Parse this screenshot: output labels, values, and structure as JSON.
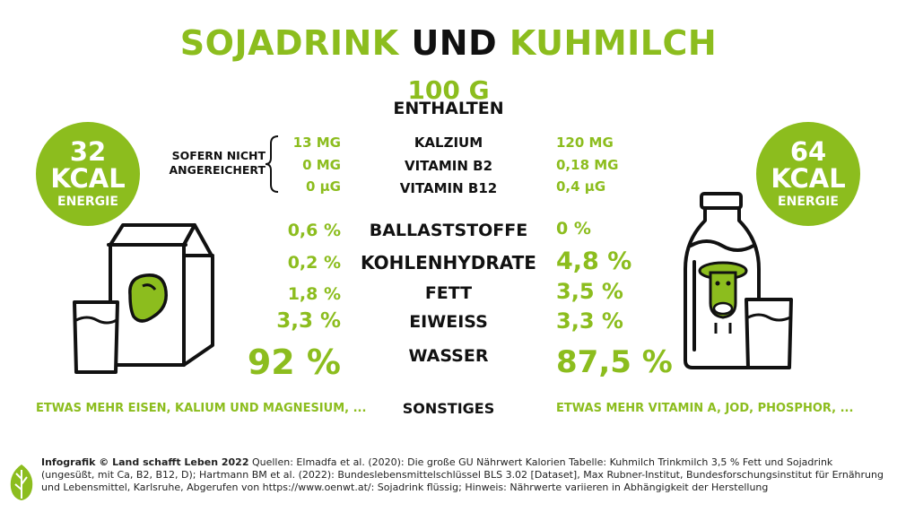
{
  "title": {
    "part1": "SOJADRINK",
    "part2": "UND",
    "part3": "KUHMILCH"
  },
  "header": {
    "line1": "100 G",
    "line2": "ENTHALTEN"
  },
  "soy_energy": {
    "value": "32",
    "unit": "KCAL",
    "label": "ENERGIE"
  },
  "milk_energy": {
    "value": "64",
    "unit": "KCAL",
    "label": "ENERGIE"
  },
  "note": {
    "line1": "SOFERN NICHT",
    "line2": "ANGEREICHERT"
  },
  "rows": [
    {
      "label": "KALZIUM",
      "soy": "13 MG",
      "milk": "120 MG"
    },
    {
      "label": "VITAMIN B2",
      "soy": "0 MG",
      "milk": "0,18 MG"
    },
    {
      "label": "VITAMIN B12",
      "soy": "0 µG",
      "milk": "0,4 µG"
    },
    {
      "label": "BALLASTSTOFFE",
      "soy": "0,6 %",
      "milk": "0 %"
    },
    {
      "label": "KOHLENHYDRATE",
      "soy": "0,2 %",
      "milk": "4,8 %"
    },
    {
      "label": "FETT",
      "soy": "1,8 %",
      "milk": "3,5 %"
    },
    {
      "label": "EIWEISS",
      "soy": "3,3 %",
      "milk": "3,3 %"
    },
    {
      "label": "WASSER",
      "soy": "92 %",
      "milk": "87,5 %"
    }
  ],
  "other": {
    "label": "SONSTIGES",
    "soy": "ETWAS MEHR EISEN, KALIUM UND MAGNESIUM, ...",
    "milk": "ETWAS MEHR VITAMIN A, JOD, PHOSPHOR, ..."
  },
  "footer": {
    "bold": "Infografik © Land schafft Leben 2022",
    "text": " Quellen: Elmadfa et al. (2020): Die große GU Nährwert Kalorien Tabelle: Kuhmilch Trinkmilch 3,5 % Fett und Sojadrink (ungesüßt, mit Ca, B2, B12, D); Hartmann BM et al. (2022): Bundeslebensmittelschlüssel BLS 3.02 [Dataset], Max Rubner-Institut, Bundesforschungsinstitut für Ernährung und Lebensmittel, Karlsruhe, Abgerufen von https://www.oenwt.at/: Sojadrink flüssig; Hinweis: Nährwerte variieren in Abhängigkeit der Herstellung"
  },
  "colors": {
    "accent": "#8cbd1e",
    "text": "#111111"
  },
  "icons": [
    "soy-carton-icon",
    "milk-bottle-icon",
    "glass-icon",
    "cow-icon",
    "leaf-logo-icon"
  ]
}
